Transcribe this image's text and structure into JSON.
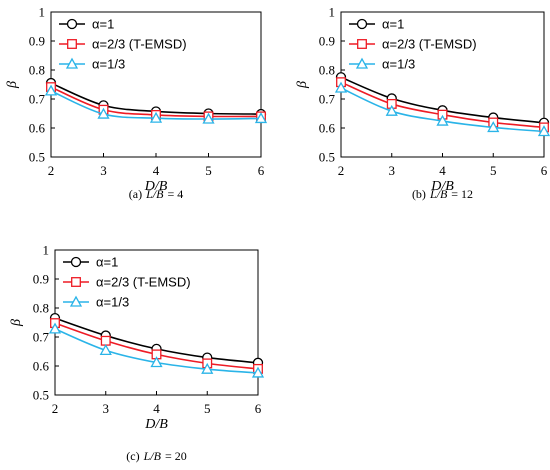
{
  "chart_data": [
    {
      "type": "line",
      "caption_label": "(a)",
      "caption_expr": "L/B",
      "caption_value": "= 4",
      "xlabel": "D/B",
      "ylabel": "β",
      "xlim": [
        2,
        6
      ],
      "ylim": [
        0.5,
        1
      ],
      "xticks": [
        "2",
        "3",
        "4",
        "5",
        "6"
      ],
      "yticks": [
        "0.5",
        "0.6",
        "0.7",
        "0.8",
        "0.9",
        "1"
      ],
      "legend_position": "top-left",
      "x": [
        2,
        3,
        4,
        5,
        6
      ],
      "series": [
        {
          "name": "α=1",
          "color": "#000000",
          "marker": "circle",
          "values": [
            0.755,
            0.678,
            0.657,
            0.65,
            0.648
          ]
        },
        {
          "name": "α=2/3 (T-EMSD)",
          "color": "#ee1c25",
          "marker": "square",
          "values": [
            0.741,
            0.663,
            0.645,
            0.64,
            0.64
          ]
        },
        {
          "name": "α=1/3",
          "color": "#2ab4e8",
          "marker": "triangle",
          "values": [
            0.728,
            0.648,
            0.634,
            0.631,
            0.633
          ]
        }
      ]
    },
    {
      "type": "line",
      "caption_label": "(b)",
      "caption_expr": "L/B",
      "caption_value": "= 12",
      "xlabel": "D/B",
      "ylabel": "β",
      "xlim": [
        2,
        6
      ],
      "ylim": [
        0.5,
        1
      ],
      "xticks": [
        "2",
        "3",
        "4",
        "5",
        "6"
      ],
      "yticks": [
        "0.5",
        "0.6",
        "0.7",
        "0.8",
        "0.9",
        "1"
      ],
      "legend_position": "top-left",
      "x": [
        2,
        3,
        4,
        5,
        6
      ],
      "series": [
        {
          "name": "α=1",
          "color": "#000000",
          "marker": "circle",
          "values": [
            0.775,
            0.702,
            0.661,
            0.636,
            0.618
          ]
        },
        {
          "name": "α=2/3 (T-EMSD)",
          "color": "#ee1c25",
          "marker": "square",
          "values": [
            0.758,
            0.683,
            0.646,
            0.619,
            0.602
          ]
        },
        {
          "name": "α=1/3",
          "color": "#2ab4e8",
          "marker": "triangle",
          "values": [
            0.738,
            0.658,
            0.624,
            0.602,
            0.588
          ]
        }
      ]
    },
    {
      "type": "line",
      "caption_label": "(c)",
      "caption_expr": "L/B",
      "caption_value": "= 20",
      "xlabel": "D/B",
      "ylabel": "β",
      "xlim": [
        2,
        6
      ],
      "ylim": [
        0.5,
        1
      ],
      "xticks": [
        "2",
        "3",
        "4",
        "5",
        "6"
      ],
      "yticks": [
        "0.5",
        "0.6",
        "0.7",
        "0.8",
        "0.9",
        "1"
      ],
      "legend_position": "top-left",
      "x": [
        2,
        3,
        4,
        5,
        6
      ],
      "series": [
        {
          "name": "α=1",
          "color": "#000000",
          "marker": "circle",
          "values": [
            0.765,
            0.705,
            0.659,
            0.629,
            0.611
          ]
        },
        {
          "name": "α=2/3 (T-EMSD)",
          "color": "#ee1c25",
          "marker": "square",
          "values": [
            0.748,
            0.687,
            0.64,
            0.609,
            0.59
          ]
        },
        {
          "name": "α=1/3",
          "color": "#2ab4e8",
          "marker": "triangle",
          "values": [
            0.728,
            0.654,
            0.612,
            0.589,
            0.576
          ]
        }
      ]
    }
  ]
}
